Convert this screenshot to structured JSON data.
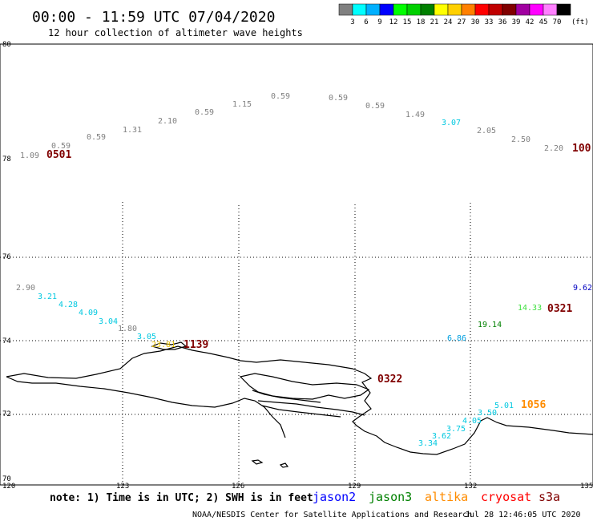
{
  "header": {
    "title": "00:00 - 11:59 UTC 07/04/2020",
    "subtitle": "12 hour collection of altimeter wave heights"
  },
  "legend": {
    "unit": "(ft)",
    "bins": [
      {
        "label": "3",
        "color": "#808080"
      },
      {
        "label": "6",
        "color": "#00ffff"
      },
      {
        "label": "9",
        "color": "#00b0ff"
      },
      {
        "label": "12",
        "color": "#0000ff"
      },
      {
        "label": "15",
        "color": "#00ff00"
      },
      {
        "label": "18",
        "color": "#00d000"
      },
      {
        "label": "21",
        "color": "#008000"
      },
      {
        "label": "24",
        "color": "#ffff00"
      },
      {
        "label": "27",
        "color": "#ffd000"
      },
      {
        "label": "30",
        "color": "#ff8000"
      },
      {
        "label": "33",
        "color": "#ff0000"
      },
      {
        "label": "36",
        "color": "#c00000"
      },
      {
        "label": "39",
        "color": "#800000"
      },
      {
        "label": "42",
        "color": "#a000a0"
      },
      {
        "label": "45",
        "color": "#ff00ff"
      },
      {
        "label": "70",
        "color": "#ff80ff"
      },
      {
        "label": "",
        "color": "#000000"
      }
    ]
  },
  "axes": {
    "lat_labels": [
      "80",
      "78",
      "76",
      "74",
      "72",
      "70"
    ],
    "lon_labels": [
      "120",
      "123",
      "126",
      "129",
      "132",
      "135"
    ]
  },
  "wave_labels": [
    {
      "text": "1.09",
      "color": "#808080"
    },
    {
      "text": "0.59",
      "color": "#808080"
    },
    {
      "text": "0.59",
      "color": "#808080"
    },
    {
      "text": "1.31",
      "color": "#808080"
    },
    {
      "text": "2.10",
      "color": "#808080"
    },
    {
      "text": "0.59",
      "color": "#808080"
    },
    {
      "text": "1.15",
      "color": "#808080"
    },
    {
      "text": "0.59",
      "color": "#808080"
    },
    {
      "text": "0.59",
      "color": "#808080"
    },
    {
      "text": "0.59",
      "color": "#808080"
    },
    {
      "text": "1.49",
      "color": "#808080"
    },
    {
      "text": "3.07",
      "color": "#00c8e0"
    },
    {
      "text": "2.05",
      "color": "#808080"
    },
    {
      "text": "2.50",
      "color": "#808080"
    },
    {
      "text": "2.20",
      "color": "#808080"
    },
    {
      "text": "2.90",
      "color": "#808080"
    },
    {
      "text": "3.21",
      "color": "#00c8e0"
    },
    {
      "text": "4.28",
      "color": "#00c8e0"
    },
    {
      "text": "4.09",
      "color": "#00c8e0"
    },
    {
      "text": "3.04",
      "color": "#00c8e0"
    },
    {
      "text": "1.80",
      "color": "#808080"
    },
    {
      "text": "3.05",
      "color": "#00c8e0"
    },
    {
      "text": "23.81",
      "color": "#e8c000"
    },
    {
      "text": "6.86",
      "color": "#00a0e0"
    },
    {
      "text": "19.14",
      "color": "#008000"
    },
    {
      "text": "14.33",
      "color": "#40e040"
    },
    {
      "text": "9.62",
      "color": "#0000c0"
    },
    {
      "text": "5.01",
      "color": "#00c8e0"
    },
    {
      "text": "3.50",
      "color": "#00c8e0"
    },
    {
      "text": "4.05",
      "color": "#00c8e0"
    },
    {
      "text": "3.75",
      "color": "#00c8e0"
    },
    {
      "text": "3.62",
      "color": "#00c8e0"
    },
    {
      "text": "3.34",
      "color": "#00c8e0"
    }
  ],
  "time_labels": [
    {
      "text": "0501",
      "color": "#800000"
    },
    {
      "text": "100",
      "color": "#800000"
    },
    {
      "text": "1139",
      "color": "#800000"
    },
    {
      "text": "0322",
      "color": "#800000"
    },
    {
      "text": "0321",
      "color": "#800000"
    },
    {
      "text": "1056",
      "color": "#ff8c00"
    }
  ],
  "footer": {
    "note": "note: 1) Time is in UTC; 2) SWH is in feet",
    "satellites": [
      {
        "name": "jason2",
        "color": "#0000ff"
      },
      {
        "name": "jason3",
        "color": "#008000"
      },
      {
        "name": "altika",
        "color": "#ff8c00"
      },
      {
        "name": "cryosat",
        "color": "#ff0000"
      },
      {
        "name": "s3a",
        "color": "#800000"
      }
    ],
    "credit": "NOAA/NESDIS Center for Satellite Applications and Research",
    "timestamp": "Jul 28 12:46:05 UTC 2020"
  }
}
